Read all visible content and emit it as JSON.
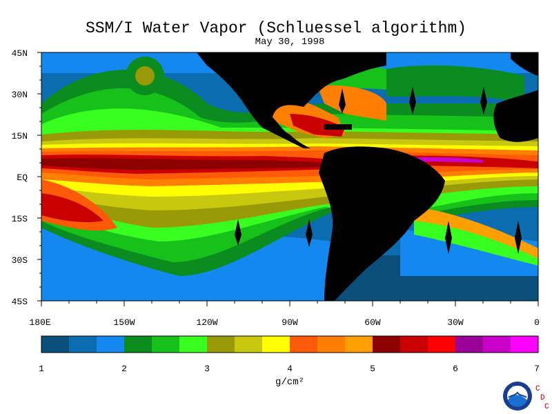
{
  "title": "SSM/I Water Vapor (Schluessel algorithm)",
  "date": "May 30, 1998",
  "lat_labels": [
    "45N",
    "30N",
    "15N",
    "EQ",
    "15S",
    "30S",
    "45S"
  ],
  "lon_labels": [
    "180E",
    "150W",
    "120W",
    "90W",
    "60W",
    "30W",
    "0"
  ],
  "colorbar": {
    "unit": "g/cm²",
    "ticks": [
      "1",
      "2",
      "3",
      "4",
      "5",
      "6",
      "7"
    ],
    "colors": [
      "#0a4f7a",
      "#0b6db0",
      "#1488ee",
      "#0a8c1e",
      "#16c21a",
      "#39ff20",
      "#9a9a08",
      "#c8c810",
      "#ffff00",
      "#ff5a08",
      "#ff8000",
      "#ffa000",
      "#8c0000",
      "#c80000",
      "#ff0000",
      "#9a0098",
      "#c800c8",
      "#ff00ff"
    ]
  },
  "colors": {
    "land": "#000000",
    "ocean_dry": "#0b6db0",
    "ocean_deep": "#0a4f7a",
    "missing_swath": "#000000"
  },
  "logo": {
    "agency": "NOAA",
    "letters": [
      "C",
      "D",
      "C"
    ]
  }
}
